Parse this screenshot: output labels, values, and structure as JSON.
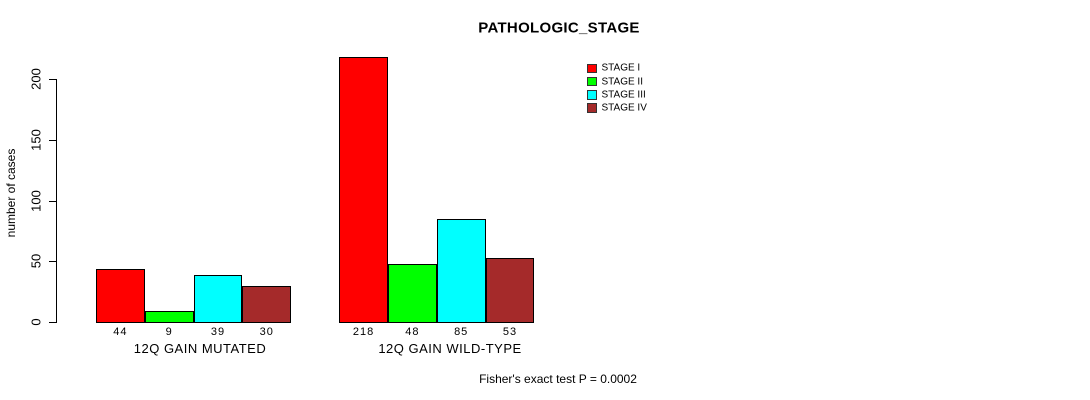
{
  "chart": {
    "title": "PATHOLOGIC_STAGE",
    "ylabel": "number of cases",
    "annotation": "Fisher's exact test P = 0.0002"
  },
  "chart_data": {
    "type": "bar",
    "title": "PATHOLOGIC_STAGE",
    "xlabel": "",
    "ylabel": "number of cases",
    "categories": [
      "12Q GAIN MUTATED",
      "12Q GAIN WILD-TYPE"
    ],
    "series": [
      {
        "name": "STAGE I",
        "color": "#ff0000",
        "values": [
          44,
          218
        ]
      },
      {
        "name": "STAGE II",
        "color": "#00ff00",
        "values": [
          9,
          48
        ]
      },
      {
        "name": "STAGE III",
        "color": "#00ffff",
        "values": [
          39,
          85
        ]
      },
      {
        "name": "STAGE IV",
        "color": "#a52a2a",
        "values": [
          30,
          53
        ]
      }
    ],
    "bar_value_labels": [
      [
        "44",
        "9",
        "39",
        "30"
      ],
      [
        "218",
        "48",
        "85",
        "53"
      ]
    ],
    "yticks": [
      0,
      50,
      100,
      150,
      200
    ],
    "ylim": [
      0,
      200
    ],
    "grid": false,
    "legend_position": "top-right",
    "annotation": "Fisher's exact test P = 0.0002",
    "axis_color": "#000000",
    "bar_border_color": "#000000"
  }
}
